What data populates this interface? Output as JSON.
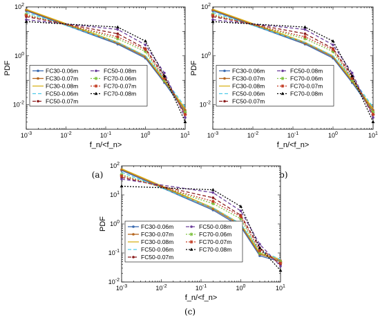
{
  "figure": {
    "panels": [
      {
        "label": "(a)"
      },
      {
        "label": "(b)"
      },
      {
        "label": "(c)"
      }
    ]
  },
  "styles": {
    "FC30-0.06m": {
      "color": "#3a6ab0",
      "dash": "",
      "marker": "dot"
    },
    "FC30-0.07m": {
      "color": "#b5651d",
      "dash": "",
      "marker": "dot"
    },
    "FC30-0.08m": {
      "color": "#d8b21c",
      "dash": "",
      "marker": "none"
    },
    "FC50-0.06m": {
      "color": "#4cc9e8",
      "dash": "5,3",
      "marker": "none"
    },
    "FC50-0.07m": {
      "color": "#8b1a1a",
      "dash": "5,3",
      "marker": "dot"
    },
    "FC50-0.08m": {
      "color": "#6a3d9a",
      "dash": "5,3",
      "marker": "dot"
    },
    "FC70-0.06m": {
      "color": "#7fc241",
      "dash": "2,2",
      "marker": "star"
    },
    "FC70-0.07m": {
      "color": "#c23b22",
      "dash": "2,2",
      "marker": "star"
    },
    "FC70-0.08m": {
      "color": "#000000",
      "dash": "2,2",
      "marker": "tri"
    }
  },
  "chart_data": [
    {
      "type": "line",
      "xlabel": "f_n/<f_n>",
      "ylabel": "PDF",
      "xscale": "log",
      "yscale": "log",
      "xlim": [
        0.001,
        10
      ],
      "ylim": [
        0.001,
        100
      ],
      "xticks": [
        {
          "v": 0.001,
          "m": "10",
          "e": "-3"
        },
        {
          "v": 0.01,
          "m": "10",
          "e": "-2"
        },
        {
          "v": 0.1,
          "m": "10",
          "e": "-1"
        },
        {
          "v": 1,
          "m": "10",
          "e": "0"
        },
        {
          "v": 10,
          "m": "10",
          "e": "1"
        }
      ],
      "yticks": [
        {
          "v": 0.01,
          "m": "10",
          "e": "-2"
        },
        {
          "v": 1,
          "m": "10",
          "e": "0"
        },
        {
          "v": 100,
          "m": "10",
          "e": "2"
        }
      ],
      "legend": "left-center",
      "series": [
        {
          "name": "FC30-0.06m",
          "x": [
            0.001,
            0.2,
            1,
            3,
            10
          ],
          "y": [
            70,
            3,
            0.8,
            0.08,
            0.005
          ]
        },
        {
          "name": "FC30-0.07m",
          "x": [
            0.001,
            0.2,
            1,
            3,
            10
          ],
          "y": [
            75,
            3.3,
            0.9,
            0.09,
            0.006
          ]
        },
        {
          "name": "FC30-0.08m",
          "x": [
            0.001,
            0.2,
            1,
            3,
            10
          ],
          "y": [
            80,
            3.6,
            1,
            0.1,
            0.007
          ]
        },
        {
          "name": "FC50-0.06m",
          "x": [
            0.001,
            0.2,
            1,
            3,
            10
          ],
          "y": [
            60,
            3.5,
            1,
            0.12,
            0.008
          ]
        },
        {
          "name": "FC50-0.07m",
          "x": [
            0.001,
            0.2,
            1,
            3,
            10
          ],
          "y": [
            40,
            8,
            2,
            0.15,
            0.004
          ]
        },
        {
          "name": "FC50-0.08m",
          "x": [
            0.001,
            0.2,
            1,
            3,
            10
          ],
          "y": [
            30,
            12,
            2.8,
            0.2,
            0.003
          ]
        },
        {
          "name": "FC70-0.06m",
          "x": [
            0.001,
            0.2,
            1,
            3,
            10
          ],
          "y": [
            50,
            5,
            1.5,
            0.1,
            0.005
          ]
        },
        {
          "name": "FC70-0.07m",
          "x": [
            0.001,
            0.2,
            1,
            3,
            10
          ],
          "y": [
            45,
            6,
            1.8,
            0.12,
            0.004
          ]
        },
        {
          "name": "FC70-0.08m",
          "x": [
            0.001,
            0.2,
            1,
            3,
            10
          ],
          "y": [
            25,
            15,
            4,
            0.15,
            0.002
          ]
        }
      ]
    },
    {
      "type": "line",
      "xlabel": "f_n/<f_n>",
      "ylabel": "PDF",
      "xscale": "log",
      "yscale": "log",
      "xlim": [
        0.001,
        10
      ],
      "ylim": [
        0.001,
        100
      ],
      "xticks": [
        {
          "v": 0.001,
          "m": "10",
          "e": "-3"
        },
        {
          "v": 0.01,
          "m": "10",
          "e": "-2"
        },
        {
          "v": 0.1,
          "m": "10",
          "e": "-1"
        },
        {
          "v": 1,
          "m": "10",
          "e": "0"
        },
        {
          "v": 10,
          "m": "10",
          "e": "1"
        }
      ],
      "yticks": [
        {
          "v": 0.01,
          "m": "10",
          "e": "-2"
        },
        {
          "v": 1,
          "m": "10",
          "e": "0"
        },
        {
          "v": 100,
          "m": "10",
          "e": "2"
        }
      ],
      "legend": "left-center",
      "series": [
        {
          "name": "FC30-0.06m",
          "x": [
            0.001,
            0.2,
            1,
            3,
            10
          ],
          "y": [
            70,
            3,
            0.8,
            0.08,
            0.005
          ]
        },
        {
          "name": "FC30-0.07m",
          "x": [
            0.001,
            0.2,
            1,
            3,
            10
          ],
          "y": [
            75,
            3.3,
            0.9,
            0.09,
            0.006
          ]
        },
        {
          "name": "FC30-0.08m",
          "x": [
            0.001,
            0.2,
            1,
            3,
            10
          ],
          "y": [
            80,
            3.6,
            1,
            0.1,
            0.007
          ]
        },
        {
          "name": "FC50-0.06m",
          "x": [
            0.001,
            0.2,
            1,
            3,
            10
          ],
          "y": [
            60,
            3.5,
            1,
            0.12,
            0.008
          ]
        },
        {
          "name": "FC50-0.07m",
          "x": [
            0.001,
            0.2,
            1,
            3,
            10
          ],
          "y": [
            40,
            8,
            2,
            0.15,
            0.004
          ]
        },
        {
          "name": "FC50-0.08m",
          "x": [
            0.001,
            0.2,
            1,
            3,
            10
          ],
          "y": [
            30,
            12,
            2.8,
            0.2,
            0.003
          ]
        },
        {
          "name": "FC70-0.06m",
          "x": [
            0.001,
            0.2,
            1,
            3,
            10
          ],
          "y": [
            50,
            5,
            1.5,
            0.1,
            0.005
          ]
        },
        {
          "name": "FC70-0.07m",
          "x": [
            0.001,
            0.2,
            1,
            3,
            10
          ],
          "y": [
            45,
            6,
            1.8,
            0.12,
            0.004
          ]
        },
        {
          "name": "FC70-0.08m",
          "x": [
            0.001,
            0.2,
            1,
            3,
            10
          ],
          "y": [
            25,
            15,
            4,
            0.15,
            0.002
          ]
        }
      ]
    },
    {
      "type": "line",
      "xlabel": "f_n/<f_n>",
      "ylabel": "PDF",
      "xscale": "log",
      "yscale": "log",
      "xlim": [
        0.001,
        10
      ],
      "ylim": [
        0.01,
        100
      ],
      "xticks": [
        {
          "v": 0.001,
          "m": "10",
          "e": "-3"
        },
        {
          "v": 0.01,
          "m": "10",
          "e": "-2"
        },
        {
          "v": 0.1,
          "m": "10",
          "e": "-1"
        },
        {
          "v": 1,
          "m": "10",
          "e": "0"
        },
        {
          "v": 10,
          "m": "10",
          "e": "1"
        }
      ],
      "yticks": [
        {
          "v": 0.01,
          "m": "10",
          "e": "-2"
        },
        {
          "v": 0.1,
          "m": "10",
          "e": "-1"
        },
        {
          "v": 1,
          "m": "10",
          "e": "0"
        },
        {
          "v": 10,
          "m": "10",
          "e": "1"
        },
        {
          "v": 100,
          "m": "10",
          "e": "2"
        }
      ],
      "legend": "left-center",
      "series": [
        {
          "name": "FC30-0.06m",
          "x": [
            0.001,
            0.2,
            1,
            3,
            10
          ],
          "y": [
            70,
            3,
            0.8,
            0.08,
            0.05
          ]
        },
        {
          "name": "FC30-0.07m",
          "x": [
            0.001,
            0.2,
            1,
            3,
            10
          ],
          "y": [
            75,
            3.3,
            0.9,
            0.09,
            0.055
          ]
        },
        {
          "name": "FC30-0.08m",
          "x": [
            0.001,
            0.2,
            1,
            3,
            10
          ],
          "y": [
            80,
            3.6,
            1,
            0.1,
            0.06
          ]
        },
        {
          "name": "FC50-0.06m",
          "x": [
            0.001,
            0.2,
            1,
            3,
            10
          ],
          "y": [
            60,
            3.5,
            1,
            0.12,
            0.06
          ]
        },
        {
          "name": "FC50-0.07m",
          "x": [
            0.001,
            0.2,
            1,
            3,
            10
          ],
          "y": [
            40,
            8,
            2,
            0.15,
            0.04
          ]
        },
        {
          "name": "FC50-0.08m",
          "x": [
            0.001,
            0.2,
            1,
            3,
            10
          ],
          "y": [
            35,
            12,
            2.8,
            0.2,
            0.035
          ]
        },
        {
          "name": "FC70-0.06m",
          "x": [
            0.001,
            0.2,
            1,
            3,
            10
          ],
          "y": [
            50,
            5,
            1.5,
            0.1,
            0.05
          ]
        },
        {
          "name": "FC70-0.07m",
          "x": [
            0.001,
            0.2,
            1,
            3,
            10
          ],
          "y": [
            45,
            6,
            1.8,
            0.12,
            0.045
          ]
        },
        {
          "name": "FC70-0.08m",
          "x": [
            0.001,
            0.2,
            1,
            3,
            10
          ],
          "y": [
            20,
            15,
            4,
            0.15,
            0.025
          ]
        }
      ]
    }
  ]
}
